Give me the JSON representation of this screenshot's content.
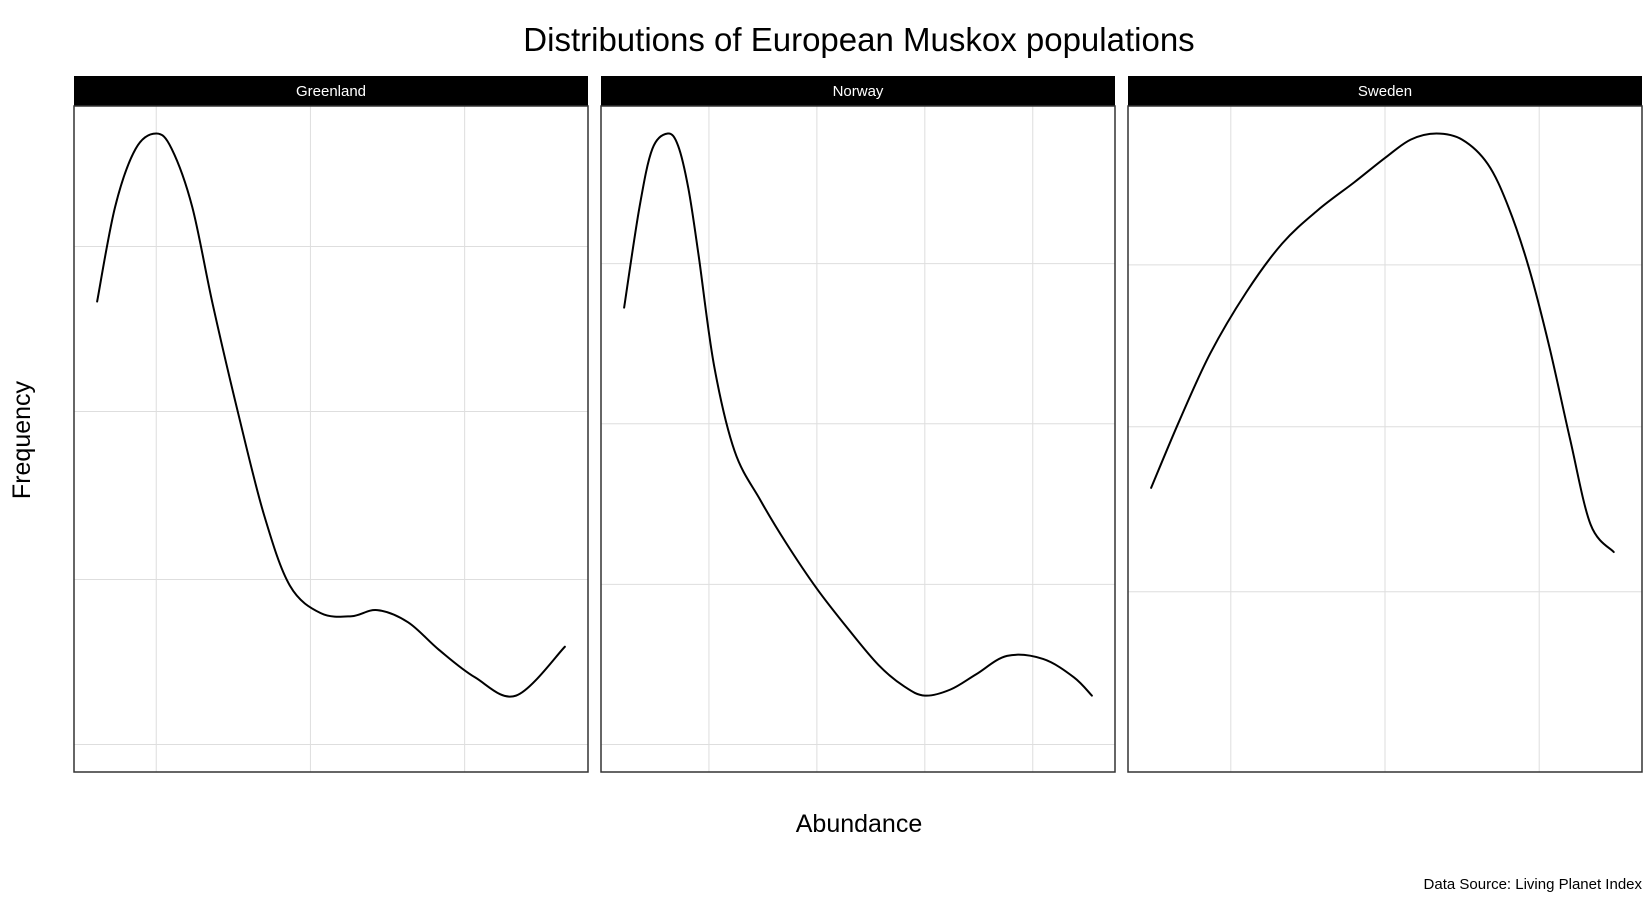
{
  "chart_data": {
    "type": "line",
    "title": "Distributions of European Muskox populations",
    "xlabel": "Abundance",
    "ylabel": "Frequency",
    "caption": "Data Source: Living Planet Index",
    "grid": true,
    "tick_labels_shown": false,
    "panels": [
      {
        "name": "Greenland",
        "xlim": [
          0,
          1
        ],
        "ylim": [
          -0.045,
          1.045
        ],
        "x_grid": [
          0.16,
          0.46,
          0.76
        ],
        "y_grid": [
          0.0,
          0.27,
          0.545,
          0.815
        ],
        "series": [
          {
            "x": [
              0.045,
              0.08,
              0.12,
              0.16,
              0.19,
              0.23,
              0.27,
              0.32,
              0.37,
              0.42,
              0.48,
              0.54,
              0.59,
              0.65,
              0.71,
              0.78,
              0.86,
              0.955
            ],
            "values": [
              0.725,
              0.88,
              0.975,
              1.0,
              0.975,
              0.88,
              0.72,
              0.54,
              0.375,
              0.26,
              0.215,
              0.21,
              0.22,
              0.2,
              0.155,
              0.11,
              0.08,
              0.16
            ]
          }
        ]
      },
      {
        "name": "Norway",
        "xlim": [
          0,
          1
        ],
        "ylim": [
          -0.045,
          1.045
        ],
        "x_grid": [
          0.21,
          0.42,
          0.63,
          0.84
        ],
        "y_grid": [
          0.0,
          0.262,
          0.525,
          0.787
        ],
        "series": [
          {
            "x": [
              0.045,
              0.075,
              0.1,
              0.13,
              0.15,
              0.17,
              0.19,
              0.22,
              0.26,
              0.31,
              0.36,
              0.42,
              0.48,
              0.54,
              0.59,
              0.63,
              0.68,
              0.73,
              0.79,
              0.86,
              0.92,
              0.955
            ],
            "values": [
              0.715,
              0.88,
              0.975,
              1.0,
              0.98,
              0.91,
              0.8,
              0.62,
              0.48,
              0.4,
              0.33,
              0.255,
              0.19,
              0.13,
              0.095,
              0.08,
              0.09,
              0.115,
              0.145,
              0.14,
              0.11,
              0.08
            ]
          }
        ]
      },
      {
        "name": "Sweden",
        "xlim": [
          0,
          1
        ],
        "ylim": [
          -0.045,
          1.045
        ],
        "x_grid": [
          0.2,
          0.5,
          0.8
        ],
        "y_grid": [
          0.25,
          0.52,
          0.785
        ],
        "series": [
          {
            "x": [
              0.045,
              0.1,
              0.16,
              0.23,
              0.3,
              0.37,
              0.44,
              0.5,
              0.55,
              0.6,
              0.65,
              0.7,
              0.74,
              0.78,
              0.82,
              0.86,
              0.9,
              0.945
            ],
            "values": [
              0.42,
              0.53,
              0.64,
              0.74,
              0.82,
              0.875,
              0.92,
              0.96,
              0.99,
              1.0,
              0.99,
              0.95,
              0.88,
              0.78,
              0.65,
              0.5,
              0.36,
              0.315
            ]
          }
        ]
      }
    ]
  }
}
